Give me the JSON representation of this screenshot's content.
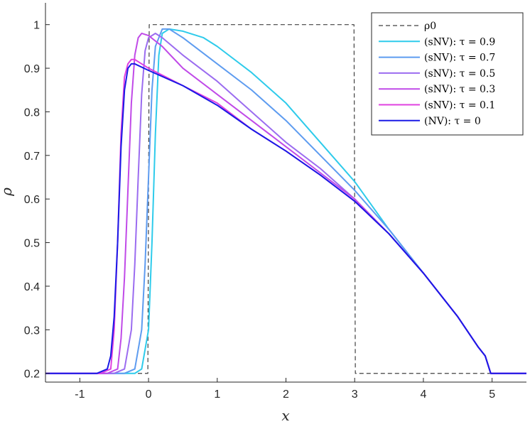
{
  "chart_data": {
    "type": "line",
    "xlabel": "x",
    "ylabel": "ρ",
    "xlim": [
      -1.5,
      5.5
    ],
    "ylim": [
      0.18,
      1.05
    ],
    "xticks": [
      -1,
      0,
      1,
      2,
      3,
      4,
      5
    ],
    "yticks": [
      0.2,
      0.3,
      0.4,
      0.5,
      0.6,
      0.7,
      0.8,
      0.9,
      1
    ],
    "xtick_labels": [
      "-1",
      "0",
      "1",
      "2",
      "3",
      "4",
      "5"
    ],
    "ytick_labels": [
      "0.2",
      "0.3",
      "0.4",
      "0.5",
      "0.6",
      "0.7",
      "0.8",
      "0.9",
      "1"
    ],
    "grid": false,
    "legend": "top-right",
    "series": [
      {
        "name": "ρ0",
        "color": "#404040",
        "style": "dashed",
        "x": [
          -1.5,
          -0.01,
          0.0,
          0.01,
          2.99,
          3.0,
          3.01,
          5.5
        ],
        "y": [
          0.2,
          0.2,
          0.6,
          1.0,
          1.0,
          0.6,
          0.2,
          0.2
        ]
      },
      {
        "name": "(sNV): τ = 0.9",
        "color": "#2ecbeb",
        "style": "solid",
        "x": [
          -1.5,
          -0.2,
          -0.1,
          0.0,
          0.05,
          0.1,
          0.15,
          0.2,
          0.3,
          0.5,
          0.8,
          1.0,
          1.5,
          2.0,
          2.5,
          3.0,
          3.5,
          4.0,
          4.5,
          4.8,
          4.9,
          4.98,
          5.1,
          5.5
        ],
        "y": [
          0.2,
          0.2,
          0.21,
          0.3,
          0.5,
          0.75,
          0.93,
          0.98,
          0.99,
          0.985,
          0.97,
          0.95,
          0.89,
          0.82,
          0.73,
          0.64,
          0.53,
          0.43,
          0.33,
          0.26,
          0.24,
          0.2,
          0.2,
          0.2
        ]
      },
      {
        "name": "(sNV): τ = 0.7",
        "color": "#5e9cf0",
        "style": "solid",
        "x": [
          -1.5,
          -0.35,
          -0.2,
          -0.1,
          -0.05,
          0.0,
          0.05,
          0.1,
          0.2,
          0.3,
          0.5,
          1.0,
          1.5,
          2.0,
          2.5,
          3.0,
          3.5,
          4.0,
          4.5,
          4.8,
          4.9,
          4.98,
          5.1,
          5.5
        ],
        "y": [
          0.2,
          0.2,
          0.21,
          0.3,
          0.45,
          0.65,
          0.85,
          0.95,
          0.99,
          0.99,
          0.97,
          0.91,
          0.85,
          0.78,
          0.7,
          0.62,
          0.53,
          0.43,
          0.33,
          0.26,
          0.24,
          0.2,
          0.2,
          0.2
        ]
      },
      {
        "name": "(sNV): τ = 0.5",
        "color": "#9b6cf0",
        "style": "solid",
        "x": [
          -1.5,
          -0.5,
          -0.35,
          -0.25,
          -0.2,
          -0.15,
          -0.1,
          -0.05,
          0.0,
          0.1,
          0.2,
          0.5,
          1.0,
          1.5,
          2.0,
          2.5,
          3.0,
          3.5,
          4.0,
          4.5,
          4.8,
          4.9,
          4.98,
          5.1,
          5.5
        ],
        "y": [
          0.2,
          0.2,
          0.21,
          0.3,
          0.45,
          0.65,
          0.84,
          0.94,
          0.97,
          0.98,
          0.97,
          0.93,
          0.87,
          0.8,
          0.73,
          0.67,
          0.6,
          0.52,
          0.43,
          0.33,
          0.26,
          0.24,
          0.2,
          0.2,
          0.2
        ]
      },
      {
        "name": "(sNV): τ = 0.3",
        "color": "#c04ae8",
        "style": "solid",
        "x": [
          -1.5,
          -0.6,
          -0.45,
          -0.4,
          -0.35,
          -0.3,
          -0.25,
          -0.2,
          -0.15,
          -0.1,
          0.0,
          0.2,
          0.5,
          1.0,
          1.5,
          2.0,
          2.5,
          3.0,
          3.5,
          4.0,
          4.5,
          4.8,
          4.9,
          4.98,
          5.1,
          5.5
        ],
        "y": [
          0.2,
          0.2,
          0.21,
          0.28,
          0.42,
          0.62,
          0.82,
          0.93,
          0.97,
          0.98,
          0.975,
          0.95,
          0.9,
          0.84,
          0.78,
          0.72,
          0.66,
          0.6,
          0.52,
          0.43,
          0.33,
          0.26,
          0.24,
          0.2,
          0.2,
          0.2
        ]
      },
      {
        "name": "(sNV): τ = 0.1",
        "color": "#e040e0",
        "style": "solid",
        "x": [
          -1.5,
          -0.7,
          -0.55,
          -0.5,
          -0.45,
          -0.4,
          -0.35,
          -0.3,
          -0.25,
          -0.2,
          -0.1,
          0.0,
          0.5,
          1.0,
          1.5,
          2.0,
          2.5,
          3.0,
          3.5,
          4.0,
          4.5,
          4.8,
          4.9,
          4.98,
          5.1,
          5.5
        ],
        "y": [
          0.2,
          0.2,
          0.21,
          0.3,
          0.5,
          0.75,
          0.88,
          0.91,
          0.92,
          0.92,
          0.91,
          0.9,
          0.86,
          0.82,
          0.76,
          0.71,
          0.655,
          0.595,
          0.52,
          0.43,
          0.33,
          0.26,
          0.24,
          0.2,
          0.2,
          0.2
        ]
      },
      {
        "name": "(NV):   τ = 0",
        "color": "#1a1ae6",
        "style": "solid",
        "x": [
          -1.5,
          -0.75,
          -0.6,
          -0.55,
          -0.5,
          -0.45,
          -0.4,
          -0.35,
          -0.3,
          -0.25,
          -0.2,
          0.0,
          0.5,
          1.0,
          1.5,
          2.0,
          2.5,
          3.0,
          3.5,
          4.0,
          4.5,
          4.8,
          4.9,
          4.98,
          5.1,
          5.5
        ],
        "y": [
          0.2,
          0.2,
          0.21,
          0.24,
          0.33,
          0.5,
          0.72,
          0.85,
          0.9,
          0.91,
          0.91,
          0.895,
          0.86,
          0.815,
          0.76,
          0.71,
          0.655,
          0.595,
          0.52,
          0.43,
          0.33,
          0.26,
          0.24,
          0.2,
          0.2,
          0.2
        ]
      }
    ]
  }
}
